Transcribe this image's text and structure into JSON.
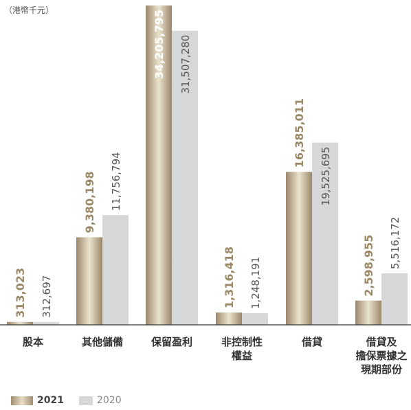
{
  "chart_data": {
    "type": "bar",
    "unit_label": "（港幣千元）",
    "categories": [
      "股本",
      "其他儲備",
      "保留盈利",
      "非控制性權益",
      "借貸",
      "借貸及擔保票據之現期部份"
    ],
    "category_lines": [
      [
        "股本"
      ],
      [
        "其他儲備"
      ],
      [
        "保留盈利"
      ],
      [
        "非控制性",
        "權益"
      ],
      [
        "借貸"
      ],
      [
        "借貸及",
        "擔保票據之",
        "現期部份"
      ]
    ],
    "series": [
      {
        "name": "2021",
        "values": [
          313023,
          9380198,
          34205795,
          1316418,
          16385011,
          2598955
        ],
        "labels": [
          "313,023",
          "9,380,198",
          "34,205,795",
          "1,316,418",
          "16,385,011",
          "2,598,955"
        ]
      },
      {
        "name": "2020",
        "values": [
          312697,
          11756794,
          31507280,
          1248191,
          19525695,
          5516172
        ],
        "labels": [
          "312,697",
          "11,756,794",
          "31,507,280",
          "1,248,191",
          "19,525,695",
          "5,516,172"
        ]
      }
    ],
    "grid": false,
    "legend": "bottom-left",
    "colors": {
      "2021": "#a08c6e",
      "2020": "#d5d7d8",
      "label_2021": "#9b8866",
      "label_2020": "#555555"
    }
  }
}
